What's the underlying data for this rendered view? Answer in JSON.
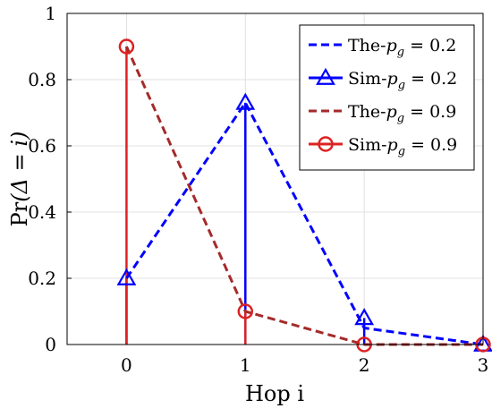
{
  "chart_data": {
    "type": "line",
    "x_categories": [
      "0",
      "1",
      "2",
      "3"
    ],
    "xlabel": "Hop i",
    "ylabel_prefix": "Pr",
    "ylabel_expr": "(Δ = i)",
    "yticks": [
      "0",
      "0.2",
      "0.4",
      "0.6",
      "0.8",
      "1"
    ],
    "xlim": [
      -0.5,
      3
    ],
    "ylim": [
      0,
      1
    ],
    "grid": true,
    "legend_position": "top-right",
    "series": [
      {
        "name": "The-p_g = 0.2",
        "legend_prefix": "The-",
        "legend_var": "p",
        "legend_sub": "g",
        "legend_suffix": " = 0.2",
        "kind": "theory",
        "color": "#0000ff",
        "x": [
          0,
          1,
          2,
          3
        ],
        "y": [
          0.2,
          0.73,
          0.05,
          0.0
        ]
      },
      {
        "name": "Sim-p_g = 0.2",
        "legend_prefix": "Sim-",
        "legend_var": "p",
        "legend_sub": "g",
        "legend_suffix": " = 0.2",
        "kind": "simulation",
        "marker": "triangle",
        "color": "#0000ff",
        "x": [
          0,
          1,
          2,
          3
        ],
        "y": [
          0.2,
          0.73,
          0.08,
          0.0
        ]
      },
      {
        "name": "The-p_g = 0.9",
        "legend_prefix": "The-",
        "legend_var": "p",
        "legend_sub": "g",
        "legend_suffix": " = 0.9",
        "kind": "theory",
        "color": "#a52a2a",
        "x": [
          0,
          1,
          2,
          3
        ],
        "y": [
          0.9,
          0.1,
          0.0,
          0.0
        ]
      },
      {
        "name": "Sim-p_g = 0.9",
        "legend_prefix": "Sim-",
        "legend_var": "p",
        "legend_sub": "g",
        "legend_suffix": " = 0.9",
        "kind": "simulation",
        "marker": "circle",
        "color": "#dd2222",
        "x": [
          0,
          1,
          2,
          3
        ],
        "y": [
          0.9,
          0.1,
          0.0,
          0.0
        ]
      }
    ]
  }
}
